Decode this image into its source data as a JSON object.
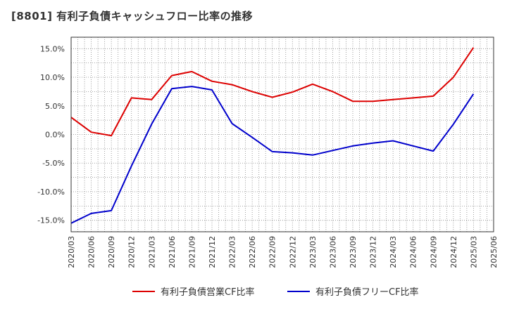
{
  "chart_data": {
    "type": "line",
    "title": "[8801]  有利子負債キャッシュフロー比率の推移",
    "xlabel": "",
    "ylabel": "",
    "ylim": [
      -17,
      17
    ],
    "yticks": [
      15,
      10,
      5,
      0,
      -5,
      -10,
      -15
    ],
    "ytick_labels": [
      "15.0%",
      "10.0%",
      "5.0%",
      "0.0%",
      "-5.0%",
      "-10.0%",
      "-15.0%"
    ],
    "grid": true,
    "legend_position": "bottom",
    "categories": [
      "2020/03",
      "2020/06",
      "2020/09",
      "2020/12",
      "2021/03",
      "2021/06",
      "2021/09",
      "2021/12",
      "2022/03",
      "2022/06",
      "2022/09",
      "2022/12",
      "2023/03",
      "2023/06",
      "2023/09",
      "2023/12",
      "2024/03",
      "2024/06",
      "2024/09",
      "2024/12",
      "2025/03",
      "2025/06"
    ],
    "series": [
      {
        "name": "有利子負債営業CF比率",
        "color": "#dd0000",
        "values": [
          3.0,
          0.4,
          -0.2,
          6.4,
          6.1,
          10.3,
          11.0,
          9.3,
          8.7,
          7.5,
          6.5,
          7.4,
          8.8,
          7.5,
          5.8,
          5.8,
          6.1,
          6.4,
          6.7,
          10.0,
          15.2,
          null
        ]
      },
      {
        "name": "有利子負債フリーCF比率",
        "color": "#0000cc",
        "values": [
          -15.5,
          -13.8,
          -13.3,
          -5.5,
          1.8,
          8.0,
          8.4,
          7.8,
          1.9,
          -0.5,
          -3.0,
          -3.2,
          -3.6,
          -2.8,
          -2.0,
          -1.5,
          -1.1,
          -2.0,
          -2.9,
          1.8,
          7.1,
          null
        ]
      }
    ]
  }
}
